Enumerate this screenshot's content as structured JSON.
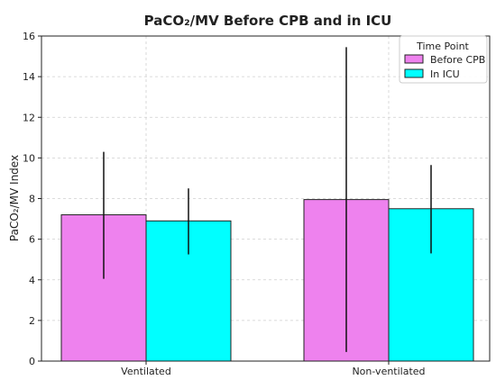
{
  "chart_data": {
    "type": "bar",
    "title": "PaCO₂/MV Before CPB and in ICU",
    "xlabel": "",
    "ylabel": "PaCO₂/MV Index",
    "categories": [
      "Ventilated",
      "Non-ventilated"
    ],
    "series": [
      {
        "name": "Before CPB",
        "color": "#ee82ee",
        "values": [
          7.2,
          7.95
        ],
        "error_low": [
          4.05,
          0.45
        ],
        "error_high": [
          10.3,
          15.45
        ]
      },
      {
        "name": "In ICU",
        "color": "#00ffff",
        "values": [
          6.9,
          7.5
        ],
        "error_low": [
          5.25,
          5.3
        ],
        "error_high": [
          8.5,
          9.65
        ]
      }
    ],
    "ylim": [
      0,
      16
    ],
    "yticks": [
      0,
      2,
      4,
      6,
      8,
      10,
      12,
      14,
      16
    ],
    "grid": true,
    "legend": {
      "title": "Time Point",
      "placement": "top-right"
    }
  }
}
